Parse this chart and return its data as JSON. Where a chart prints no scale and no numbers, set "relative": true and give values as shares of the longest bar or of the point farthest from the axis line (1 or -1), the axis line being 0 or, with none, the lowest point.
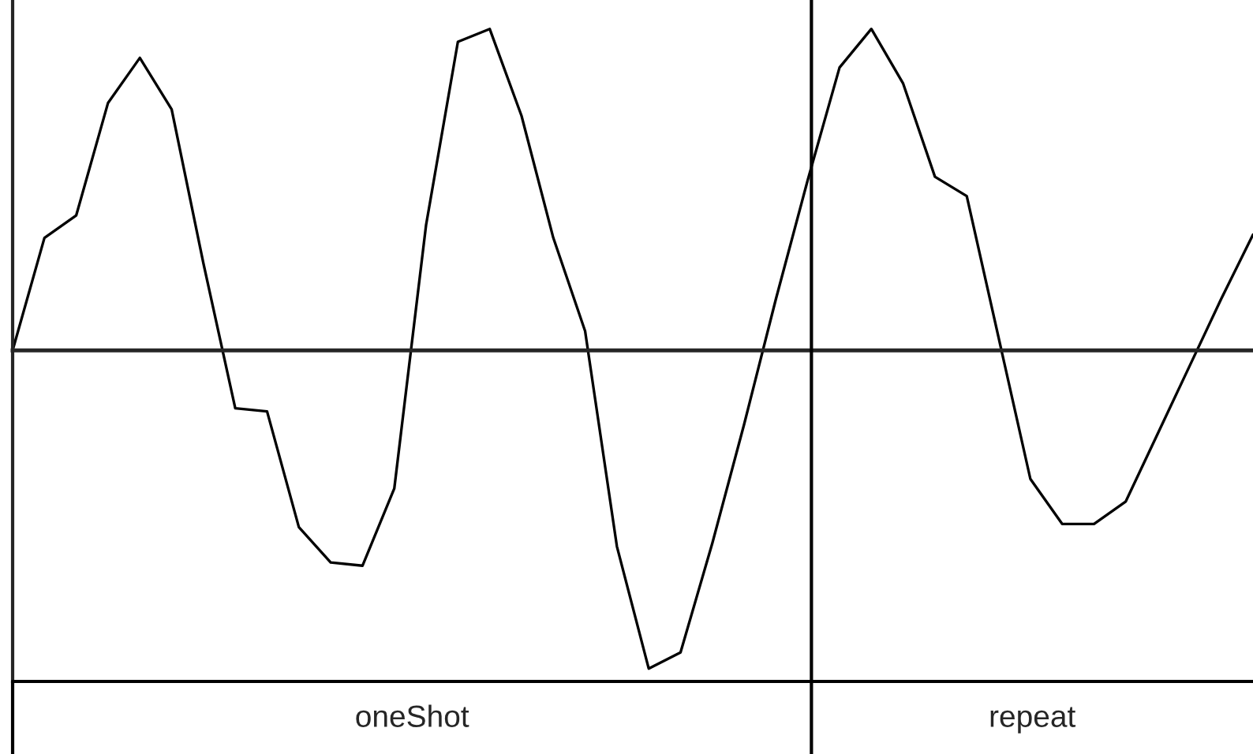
{
  "chart_data": {
    "type": "line",
    "relative": true,
    "color": "#000000",
    "categories": [
      null,
      null,
      null,
      null,
      null,
      null,
      null,
      null,
      null,
      null,
      null,
      null,
      null,
      null,
      null,
      null,
      null,
      null,
      null,
      null,
      null,
      null,
      null,
      null,
      null,
      null,
      null,
      null,
      null,
      null,
      null,
      null,
      null,
      null,
      null,
      null,
      null,
      null,
      null,
      null
    ],
    "values": [
      0,
      0.35,
      0.42,
      0.77,
      0.91,
      0.75,
      0.27,
      -0.18,
      -0.19,
      -0.55,
      -0.66,
      -0.67,
      -0.43,
      0.39,
      0.96,
      1,
      0.73,
      0.35,
      0.06,
      -0.61,
      -0.99,
      -0.94,
      -0.6,
      -0.23,
      0.16,
      0.53,
      0.88,
      1,
      0.83,
      0.54,
      0.48,
      0.04,
      -0.4,
      -0.54,
      -0.54,
      -0.47,
      -0.26,
      -0.05,
      0.16,
      0.36
    ],
    "annotations": [
      "oneShot",
      "repeat"
    ]
  }
}
